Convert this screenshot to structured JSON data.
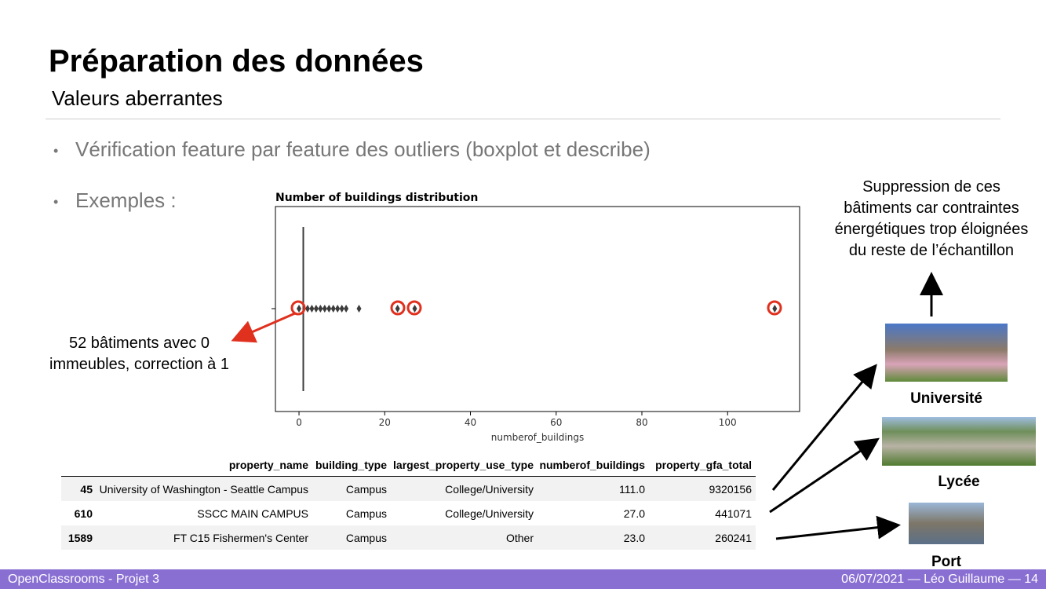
{
  "header": {
    "title": "Préparation des données",
    "subtitle": "Valeurs aberrantes"
  },
  "bullets": [
    "Vérification feature par feature des outliers (boxplot et describe)",
    "Exemples :"
  ],
  "chart": {
    "type": "boxplot",
    "title": "Number of buildings distribution",
    "x_label": "numberof_buildings",
    "xlim": [
      -5.5,
      116.8
    ],
    "xticks": [
      0,
      20,
      40,
      60,
      80,
      100
    ],
    "whisker_low": 1,
    "q1": 1,
    "median": 1,
    "q3": 1,
    "whisker_high": 1,
    "outliers": [
      0,
      2,
      3,
      4,
      5,
      6,
      7,
      8,
      9,
      10,
      11,
      14,
      23,
      27,
      111
    ]
  },
  "table": {
    "columns": [
      "property_name",
      "building_type",
      "largest_property_use_type",
      "numberof_buildings",
      "property_gfa_total"
    ],
    "rows": [
      [
        45,
        "University of Washington - Seattle Campus",
        "Campus",
        "College/University",
        "111.0",
        9320156
      ],
      [
        610,
        "SSCC MAIN CAMPUS",
        "Campus",
        "College/University",
        "27.0",
        441071
      ],
      [
        1589,
        "FT C15 Fishermen's Center",
        "Campus",
        "Other",
        "23.0",
        260241
      ]
    ]
  },
  "annotations": {
    "left": [
      "52 bâtiments avec 0",
      "immeubles, correction à 1"
    ],
    "right": [
      "Suppression de ces",
      "bâtiments car contraintes",
      "énergétiques trop éloignées",
      "du reste de l’échantillon"
    ]
  },
  "images": [
    {
      "caption": "Université"
    },
    {
      "caption": "Lycée"
    },
    {
      "caption": "Port"
    }
  ],
  "footer": {
    "left": "OpenClassrooms - Projet 3",
    "date": "06/07/2021",
    "author": "Léo Guillaume",
    "page": "14"
  }
}
